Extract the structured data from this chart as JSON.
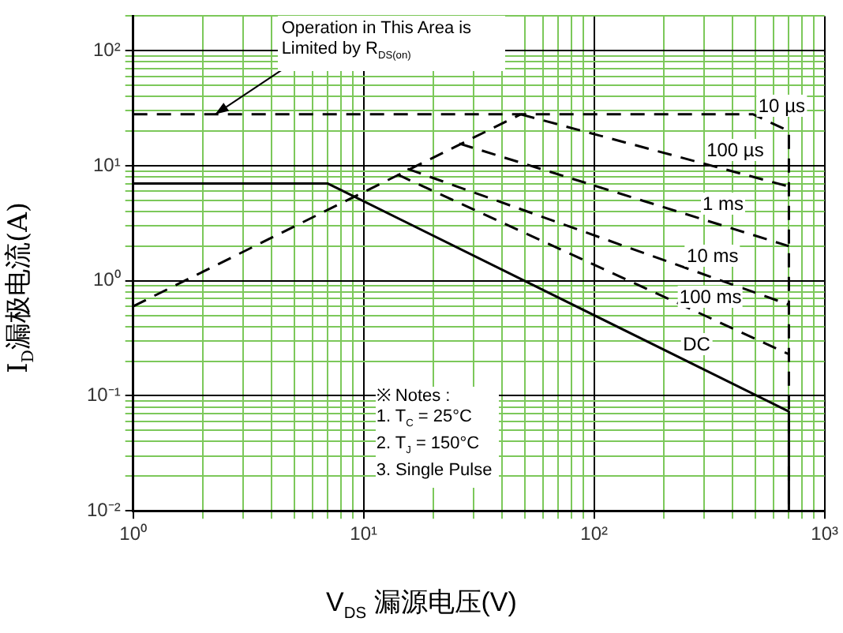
{
  "chart_data": {
    "type": "line",
    "xlabel": "V$_{DS}$ 漏源电压(V)",
    "ylabel": "I$_{D}$漏极电流(A)",
    "log": "xy",
    "grid": true,
    "legend": false,
    "marker": "none",
    "xlim": [
      1,
      1000
    ],
    "ylim": [
      0.01,
      200
    ],
    "xticks": [
      {
        "value": 1,
        "label": "10⁰"
      },
      {
        "value": 2,
        "label": null
      },
      {
        "value": 3,
        "label": null
      },
      {
        "value": 4,
        "label": null
      },
      {
        "value": 5,
        "label": null
      },
      {
        "value": 6,
        "label": null
      },
      {
        "value": 7,
        "label": null
      },
      {
        "value": 8,
        "label": null
      },
      {
        "value": 9,
        "label": null
      },
      {
        "value": 10,
        "label": "10¹"
      },
      {
        "value": 20,
        "label": null
      },
      {
        "value": 30,
        "label": null
      },
      {
        "value": 40,
        "label": null
      },
      {
        "value": 50,
        "label": null
      },
      {
        "value": 60,
        "label": null
      },
      {
        "value": 70,
        "label": null
      },
      {
        "value": 80,
        "label": null
      },
      {
        "value": 90,
        "label": null
      },
      {
        "value": 100,
        "label": "10²"
      },
      {
        "value": 200,
        "label": null
      },
      {
        "value": 300,
        "label": null
      },
      {
        "value": 400,
        "label": null
      },
      {
        "value": 500,
        "label": null
      },
      {
        "value": 600,
        "label": null
      },
      {
        "value": 700,
        "label": null
      },
      {
        "value": 800,
        "label": null
      },
      {
        "value": 900,
        "label": null
      },
      {
        "value": 1000,
        "label": "10³"
      }
    ],
    "yticks": [
      {
        "value": 0.01,
        "label": "10⁻²"
      },
      {
        "value": 0.02,
        "label": null
      },
      {
        "value": 0.03,
        "label": null
      },
      {
        "value": 0.04,
        "label": null
      },
      {
        "value": 0.05,
        "label": null
      },
      {
        "value": 0.06,
        "label": null
      },
      {
        "value": 0.07,
        "label": null
      },
      {
        "value": 0.08,
        "label": null
      },
      {
        "value": 0.09,
        "label": null
      },
      {
        "value": 0.1,
        "label": "10⁻¹"
      },
      {
        "value": 0.2,
        "label": null
      },
      {
        "value": 0.3,
        "label": null
      },
      {
        "value": 0.4,
        "label": null
      },
      {
        "value": 0.5,
        "label": null
      },
      {
        "value": 0.6,
        "label": null
      },
      {
        "value": 0.7,
        "label": null
      },
      {
        "value": 0.8,
        "label": null
      },
      {
        "value": 0.9,
        "label": null
      },
      {
        "value": 1,
        "label": "10⁰"
      },
      {
        "value": 2,
        "label": null
      },
      {
        "value": 3,
        "label": null
      },
      {
        "value": 4,
        "label": null
      },
      {
        "value": 5,
        "label": null
      },
      {
        "value": 6,
        "label": null
      },
      {
        "value": 7,
        "label": null
      },
      {
        "value": 8,
        "label": null
      },
      {
        "value": 9,
        "label": null
      },
      {
        "value": 10,
        "label": "10¹"
      },
      {
        "value": 20,
        "label": null
      },
      {
        "value": 30,
        "label": null
      },
      {
        "value": 40,
        "label": null
      },
      {
        "value": 50,
        "label": null
      },
      {
        "value": 60,
        "label": null
      },
      {
        "value": 70,
        "label": null
      },
      {
        "value": 80,
        "label": null
      },
      {
        "value": 90,
        "label": null
      },
      {
        "value": 100,
        "label": "10²"
      },
      {
        "value": 200,
        "label": null
      }
    ],
    "series": [
      {
        "color": "#000000",
        "line_style": "dashed",
        "x": [
          1,
          48
        ],
        "values": [
          0.6,
          28
        ]
      },
      {
        "name": "10 µs",
        "color": "#000000",
        "line_style": "dashed",
        "x": [
          1,
          490,
          700,
          700
        ],
        "values": [
          28,
          28,
          20,
          0.01
        ]
      },
      {
        "name": "100 µs",
        "color": "#000000",
        "line_style": "dashed",
        "x": [
          48,
          700
        ],
        "values": [
          28,
          6.6
        ]
      },
      {
        "name": "1 ms",
        "color": "#000000",
        "line_style": "dashed",
        "x": [
          26,
          700
        ],
        "values": [
          15.6,
          2.0
        ]
      },
      {
        "name": "10 ms",
        "color": "#000000",
        "line_style": "dashed",
        "x": [
          15.5,
          700
        ],
        "values": [
          9.4,
          0.62
        ]
      },
      {
        "name": "100 ms",
        "color": "#000000",
        "line_style": "dashed",
        "x": [
          14,
          700
        ],
        "values": [
          8.4,
          0.23
        ]
      },
      {
        "name": "DC",
        "color": "#000000",
        "line_style": "solid",
        "x": [
          1,
          7,
          700,
          700
        ],
        "values": [
          7,
          7,
          0.073,
          0.01
        ]
      }
    ],
    "annotations": [
      {
        "text": "Operation in This Area is Limited by R$_{DS(on)}$",
        "x": 2.27,
        "y": 28
      },
      "※ Notes :",
      "1. T$_{C}$ = 25°C",
      "2. T$_{J}$ = 150°C",
      "3. Single Pulse"
    ]
  }
}
